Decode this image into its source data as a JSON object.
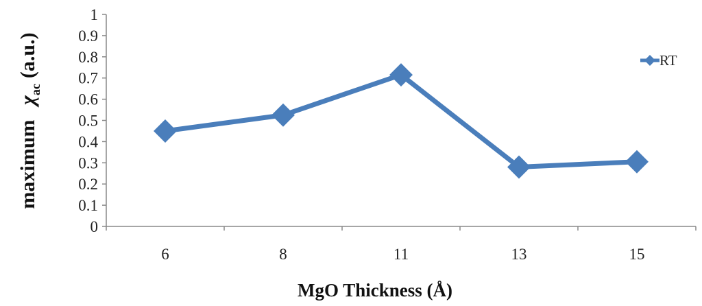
{
  "chart_data": {
    "type": "line",
    "categories": [
      "6",
      "8",
      "11",
      "13",
      "15"
    ],
    "series": [
      {
        "name": "RT",
        "values": [
          0.45,
          0.525,
          0.715,
          0.28,
          0.305
        ],
        "color": "#4a7ebb"
      }
    ],
    "xlabel": "MgO Thickness (Å)",
    "ylabel": {
      "prefix": "maximum",
      "symbol": "χ",
      "subscript": "ac",
      "suffix": "(a.u.)"
    },
    "ylim": [
      0,
      1
    ],
    "yticks": [
      "0",
      "0.1",
      "0.2",
      "0.3",
      "0.4",
      "0.5",
      "0.6",
      "0.7",
      "0.8",
      "0.9",
      "1"
    ],
    "grid": false,
    "legend": "right",
    "marker": "diamond"
  }
}
